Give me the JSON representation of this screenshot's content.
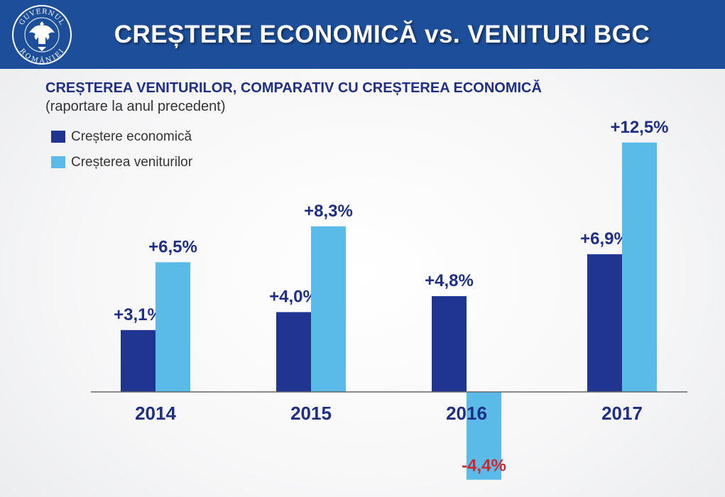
{
  "header": {
    "title": "CREȘTERE ECONOMICĂ vs. VENITURI BGC",
    "logo_text_top": "GUVERNUL",
    "logo_text_bottom": "ROMÂNIEI",
    "background": "#1d4e9a"
  },
  "subtitle": {
    "bold": "CREȘTEREA VENITURILOR, COMPARATIV CU CREȘTEREA ECONOMICĂ",
    "light": "(raportare la anul precedent)"
  },
  "colors": {
    "economic": "#1f3590",
    "revenue": "#5bbbe8",
    "label_positive": "#1f2f85",
    "label_negative": "#d0262e",
    "axis": "#666666"
  },
  "chart_data": {
    "type": "bar",
    "title": "CREȘTEREA VENITURILOR, COMPARATIV CU CREȘTEREA ECONOMICĂ (raportare la anul precedent)",
    "categories": [
      "2014",
      "2015",
      "2016",
      "2017"
    ],
    "series": [
      {
        "name": "Creștere economică",
        "values": [
          3.1,
          4.0,
          4.8,
          6.9
        ],
        "labels": [
          "+3,1%",
          "+4,0%",
          "+4,8%",
          "+6,9%"
        ]
      },
      {
        "name": "Creșterea veniturilor",
        "values": [
          6.5,
          8.3,
          -4.4,
          12.5
        ],
        "labels": [
          "+6,5%",
          "+8,3%",
          "-4,4%",
          "+12,5%"
        ]
      }
    ],
    "legend_position": "top-left",
    "grid": false,
    "ylim": [
      -4.4,
      12.5
    ]
  }
}
